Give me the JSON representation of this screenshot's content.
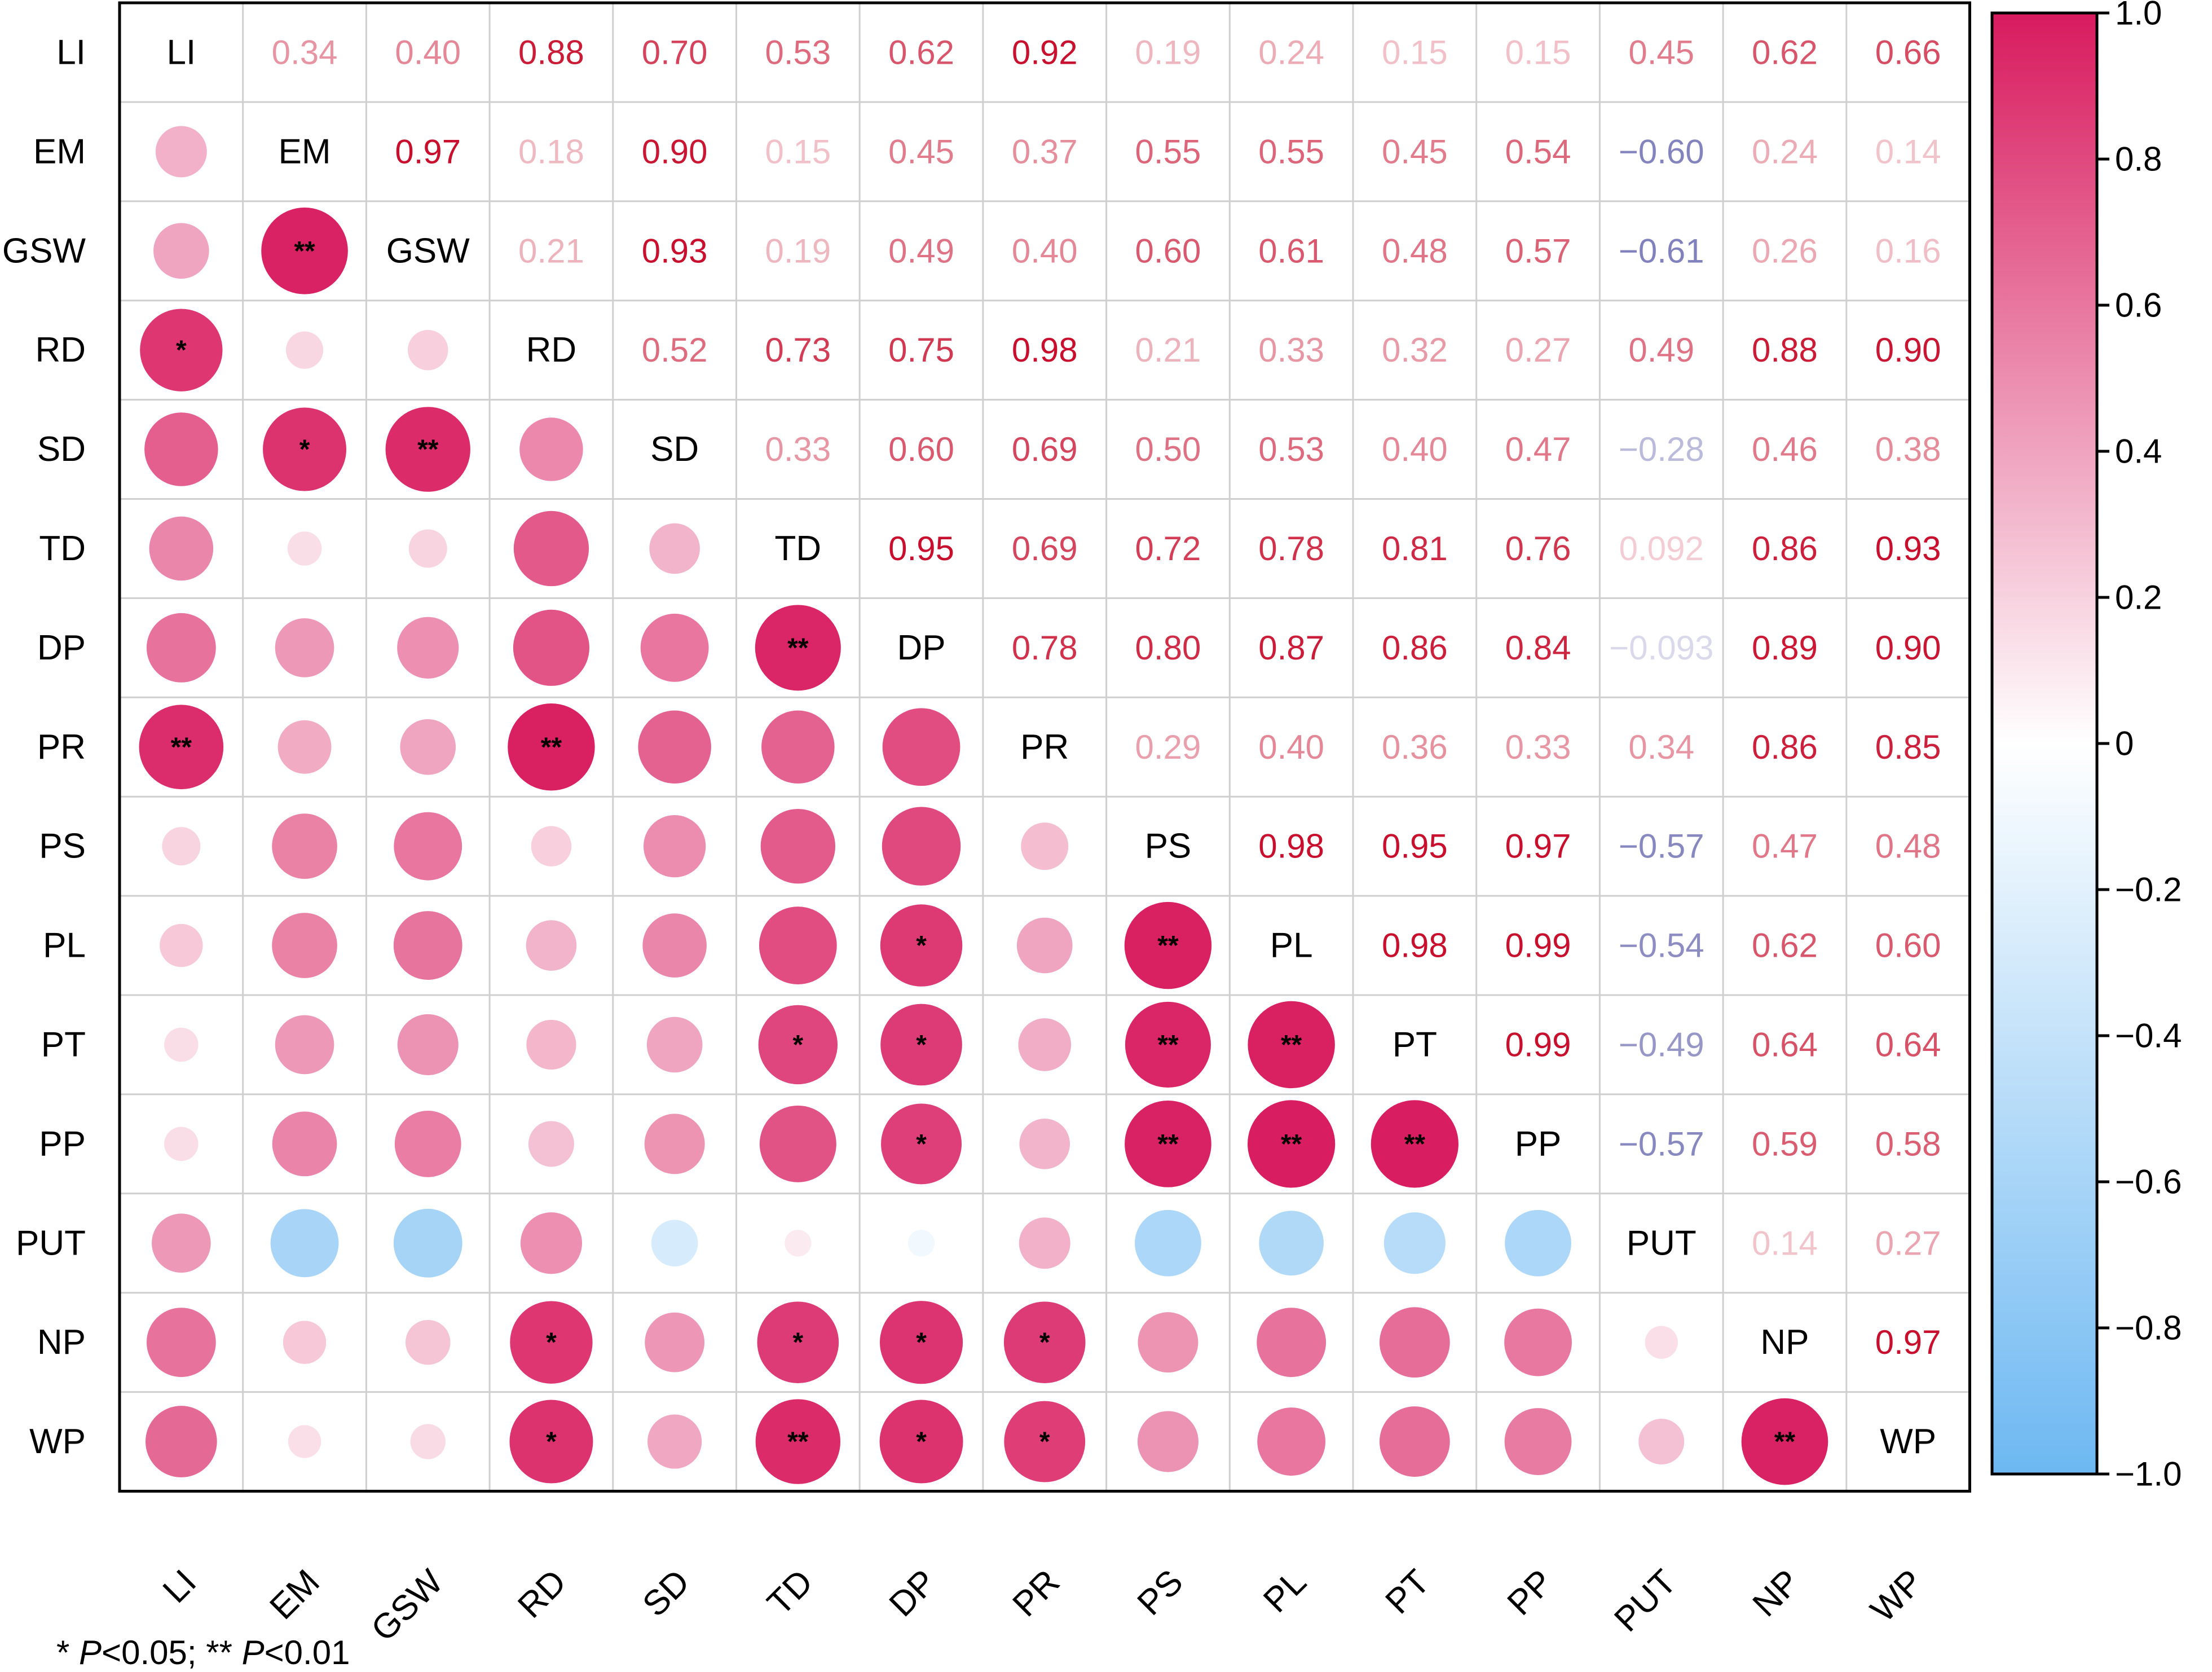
{
  "chart_data": {
    "type": "heatmap",
    "variables": [
      "LI",
      "EM",
      "GSW",
      "RD",
      "SD",
      "TD",
      "DP",
      "PR",
      "PS",
      "PL",
      "PT",
      "PP",
      "PUT",
      "NP",
      "WP"
    ],
    "upper_triangle_labels": [
      [
        "0.34",
        "0.40",
        "0.88",
        "0.70",
        "0.53",
        "0.62",
        "0.92",
        "0.19",
        "0.24",
        "0.15",
        "0.15",
        "0.45",
        "0.62",
        "0.66"
      ],
      [
        "0.97",
        "0.18",
        "0.90",
        "0.15",
        "0.45",
        "0.37",
        "0.55",
        "0.55",
        "0.45",
        "0.54",
        "−0.60",
        "0.24",
        "0.14"
      ],
      [
        "0.21",
        "0.93",
        "0.19",
        "0.49",
        "0.40",
        "0.60",
        "0.61",
        "0.48",
        "0.57",
        "−0.61",
        "0.26",
        "0.16"
      ],
      [
        "0.52",
        "0.73",
        "0.75",
        "0.98",
        "0.21",
        "0.33",
        "0.32",
        "0.27",
        "0.49",
        "0.88",
        "0.90"
      ],
      [
        "0.33",
        "0.60",
        "0.69",
        "0.50",
        "0.53",
        "0.40",
        "0.47",
        "−0.28",
        "0.46",
        "0.38"
      ],
      [
        "0.95",
        "0.69",
        "0.72",
        "0.78",
        "0.81",
        "0.76",
        "0.092",
        "0.86",
        "0.93"
      ],
      [
        "0.78",
        "0.80",
        "0.87",
        "0.86",
        "0.84",
        "−0.093",
        "0.89",
        "0.90"
      ],
      [
        "0.29",
        "0.40",
        "0.36",
        "0.33",
        "0.34",
        "0.86",
        "0.85"
      ],
      [
        "0.98",
        "0.95",
        "0.97",
        "−0.57",
        "0.47",
        "0.48"
      ],
      [
        "0.98",
        "0.99",
        "−0.54",
        "0.62",
        "0.60"
      ],
      [
        "0.99",
        "−0.49",
        "0.64",
        "0.64"
      ],
      [
        "−0.57",
        "0.59",
        "0.58"
      ],
      [
        "0.14",
        "0.27"
      ],
      [
        "0.97"
      ]
    ],
    "significance": [
      [
        3,
        0,
        "*"
      ],
      [
        7,
        0,
        "**"
      ],
      [
        2,
        1,
        "**"
      ],
      [
        4,
        1,
        "*"
      ],
      [
        4,
        2,
        "**"
      ],
      [
        7,
        3,
        "**"
      ],
      [
        13,
        3,
        "*"
      ],
      [
        14,
        3,
        "*"
      ],
      [
        6,
        5,
        "**"
      ],
      [
        10,
        5,
        "*"
      ],
      [
        13,
        5,
        "*"
      ],
      [
        14,
        5,
        "**"
      ],
      [
        9,
        6,
        "*"
      ],
      [
        10,
        6,
        "*"
      ],
      [
        11,
        6,
        "*"
      ],
      [
        13,
        6,
        "*"
      ],
      [
        14,
        6,
        "*"
      ],
      [
        13,
        7,
        "*"
      ],
      [
        14,
        7,
        "*"
      ],
      [
        9,
        8,
        "**"
      ],
      [
        10,
        8,
        "**"
      ],
      [
        11,
        8,
        "**"
      ],
      [
        10,
        9,
        "**"
      ],
      [
        11,
        9,
        "**"
      ],
      [
        11,
        10,
        "**"
      ],
      [
        14,
        13,
        "**"
      ]
    ],
    "colorbar_ticks": [
      "1.0",
      "0.8",
      "0.6",
      "0.4",
      "0.2",
      "0",
      "−0.2",
      "−0.4",
      "−0.6",
      "−0.8",
      "−1.0"
    ],
    "color_range": [
      -1,
      1
    ],
    "colors": {
      "positive": "#D81B5E",
      "neutral": "#FFFFFF",
      "negative": "#6DB8F2",
      "text_positive": "#C8102E",
      "text_negative": "#4B4BA0"
    },
    "grid": true,
    "legend_position": "right"
  },
  "footnote": {
    "p1_star": "* ",
    "p1_var": "P",
    "p1_val": "<0.05; ",
    "p2_star": "** ",
    "p2_var": "P",
    "p2_val": "<0.01"
  }
}
